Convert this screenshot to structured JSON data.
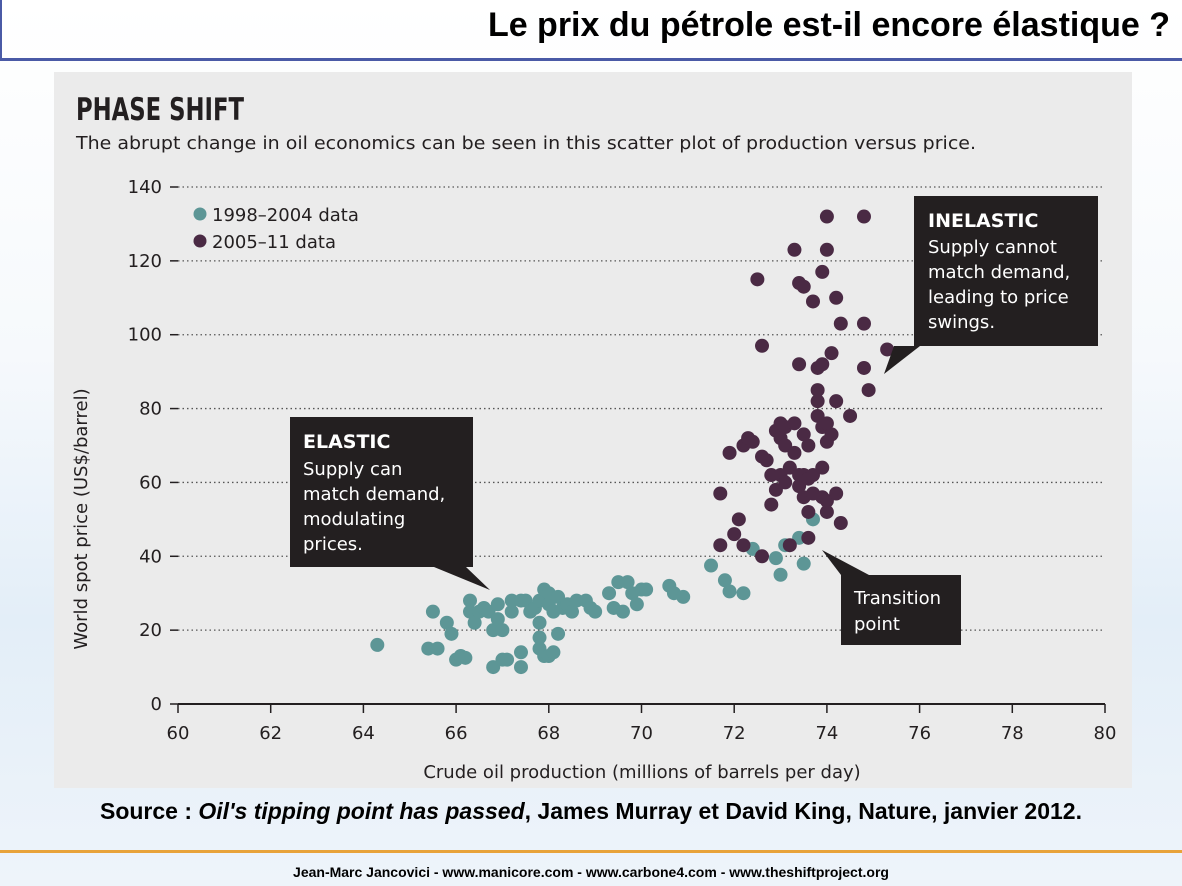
{
  "slide": {
    "title": "Le prix du pétrole est-il encore élastique ?",
    "source_label": "Source : ",
    "source_article": "Oil's tipping point has passed",
    "source_rest": ", James Murray et David King, Nature, janvier 2012.",
    "footer": "Jean-Marc Jancovici - www.manicore.com - www.carbone4.com - www.theshiftproject.org"
  },
  "colors": {
    "series_1998": "#5d9696",
    "series_2005": "#4a2a44",
    "callout_bg": "#231f20",
    "panel_bg": "#ebebeb"
  },
  "chart_data": {
    "type": "scatter",
    "title": "PHASE SHIFT",
    "subtitle": "The abrupt change in oil economics can be seen in this scatter plot of production versus price.",
    "xlabel": "Crude oil production (millions of barrels per day)",
    "ylabel": "World spot price (US$/barrel)",
    "xlim": [
      60,
      80
    ],
    "ylim": [
      0,
      140
    ],
    "xticks": [
      60,
      62,
      64,
      66,
      68,
      70,
      72,
      74,
      76,
      78,
      80
    ],
    "yticks": [
      0,
      20,
      40,
      60,
      80,
      100,
      120,
      140
    ],
    "grid": "horizontal dotted",
    "legend_position": "top-left",
    "series": [
      {
        "name": "1998–2004 data",
        "points": [
          [
            64.3,
            16
          ],
          [
            65.4,
            15
          ],
          [
            65.6,
            15
          ],
          [
            65.5,
            25
          ],
          [
            65.8,
            22
          ],
          [
            65.9,
            19
          ],
          [
            66.0,
            12
          ],
          [
            66.1,
            13
          ],
          [
            66.2,
            12.5
          ],
          [
            66.3,
            25
          ],
          [
            66.3,
            28
          ],
          [
            66.4,
            22
          ],
          [
            66.5,
            25
          ],
          [
            66.6,
            26
          ],
          [
            66.7,
            25
          ],
          [
            66.8,
            10
          ],
          [
            66.8,
            20
          ],
          [
            66.9,
            23
          ],
          [
            66.9,
            27
          ],
          [
            67.0,
            12
          ],
          [
            67.0,
            20
          ],
          [
            67.1,
            12
          ],
          [
            67.2,
            25
          ],
          [
            67.2,
            28
          ],
          [
            67.4,
            14
          ],
          [
            67.4,
            28
          ],
          [
            67.4,
            10
          ],
          [
            67.5,
            28
          ],
          [
            67.6,
            25
          ],
          [
            67.7,
            26
          ],
          [
            67.8,
            15
          ],
          [
            67.8,
            18
          ],
          [
            67.8,
            22
          ],
          [
            67.8,
            28
          ],
          [
            67.9,
            31
          ],
          [
            67.9,
            13
          ],
          [
            68.0,
            13
          ],
          [
            68.1,
            14
          ],
          [
            68.0,
            27
          ],
          [
            68.0,
            30
          ],
          [
            68.1,
            25
          ],
          [
            68.2,
            19
          ],
          [
            68.2,
            29
          ],
          [
            68.3,
            26
          ],
          [
            68.4,
            27
          ],
          [
            68.5,
            25
          ],
          [
            68.6,
            28
          ],
          [
            68.8,
            28
          ],
          [
            68.9,
            26
          ],
          [
            69.0,
            25
          ],
          [
            69.3,
            30
          ],
          [
            69.4,
            26
          ],
          [
            69.5,
            33
          ],
          [
            69.6,
            25
          ],
          [
            69.7,
            33
          ],
          [
            69.8,
            30
          ],
          [
            69.9,
            27
          ],
          [
            70.0,
            31
          ],
          [
            70.1,
            31
          ],
          [
            70.6,
            32
          ],
          [
            70.7,
            30
          ],
          [
            70.9,
            29
          ],
          [
            71.5,
            37.5
          ],
          [
            71.8,
            33.5
          ],
          [
            71.9,
            30.5
          ],
          [
            72.2,
            30
          ],
          [
            72.4,
            42
          ],
          [
            72.9,
            39.5
          ],
          [
            73.0,
            35
          ],
          [
            73.1,
            43
          ],
          [
            73.4,
            45
          ],
          [
            73.5,
            38
          ],
          [
            73.7,
            50
          ]
        ]
      },
      {
        "name": "2005–11 data",
        "points": [
          [
            71.7,
            43
          ],
          [
            71.7,
            57
          ],
          [
            71.9,
            68
          ],
          [
            72.0,
            46
          ],
          [
            72.1,
            50
          ],
          [
            72.2,
            43
          ],
          [
            72.2,
            70
          ],
          [
            72.3,
            72
          ],
          [
            72.4,
            71
          ],
          [
            72.5,
            115
          ],
          [
            72.6,
            97
          ],
          [
            72.6,
            40
          ],
          [
            72.6,
            67
          ],
          [
            72.7,
            66
          ],
          [
            72.8,
            62
          ],
          [
            72.8,
            54
          ],
          [
            72.9,
            74
          ],
          [
            72.9,
            58
          ],
          [
            73.0,
            76
          ],
          [
            73.0,
            72
          ],
          [
            73.0,
            62
          ],
          [
            73.1,
            70
          ],
          [
            73.1,
            75
          ],
          [
            73.1,
            60
          ],
          [
            73.2,
            43
          ],
          [
            73.2,
            64
          ],
          [
            73.3,
            123
          ],
          [
            73.3,
            68
          ],
          [
            73.3,
            76
          ],
          [
            73.4,
            114
          ],
          [
            73.4,
            92
          ],
          [
            73.4,
            62
          ],
          [
            73.4,
            59
          ],
          [
            73.5,
            113
          ],
          [
            73.5,
            73
          ],
          [
            73.5,
            62
          ],
          [
            73.5,
            56
          ],
          [
            73.6,
            45
          ],
          [
            73.6,
            52
          ],
          [
            73.6,
            70
          ],
          [
            73.6,
            61
          ],
          [
            73.7,
            109
          ],
          [
            73.7,
            62
          ],
          [
            73.7,
            57
          ],
          [
            73.8,
            82
          ],
          [
            73.8,
            85
          ],
          [
            73.8,
            78
          ],
          [
            73.8,
            91
          ],
          [
            73.9,
            117
          ],
          [
            73.9,
            92
          ],
          [
            73.9,
            75
          ],
          [
            73.9,
            64
          ],
          [
            73.9,
            56
          ],
          [
            74.0,
            132
          ],
          [
            74.0,
            123
          ],
          [
            74.0,
            76
          ],
          [
            74.0,
            71
          ],
          [
            74.0,
            55
          ],
          [
            74.0,
            52
          ],
          [
            74.1,
            95
          ],
          [
            74.1,
            73
          ],
          [
            74.2,
            110
          ],
          [
            74.2,
            82
          ],
          [
            74.2,
            57
          ],
          [
            74.3,
            103
          ],
          [
            74.3,
            49
          ],
          [
            74.5,
            78
          ],
          [
            74.8,
            132
          ],
          [
            74.8,
            103
          ],
          [
            74.8,
            91
          ],
          [
            74.9,
            85
          ],
          [
            75.3,
            96
          ]
        ]
      }
    ],
    "annotations": [
      {
        "name": "elastic-callout",
        "heading": "ELASTIC",
        "lines": [
          "Supply can",
          "match demand,",
          "modulating",
          "prices."
        ]
      },
      {
        "name": "inelastic-callout",
        "heading": "INELASTIC",
        "lines": [
          "Supply cannot",
          "match demand,",
          "leading to price",
          "swings."
        ]
      },
      {
        "name": "transition-callout",
        "heading": "",
        "lines": [
          "Transition",
          "point"
        ]
      }
    ]
  }
}
